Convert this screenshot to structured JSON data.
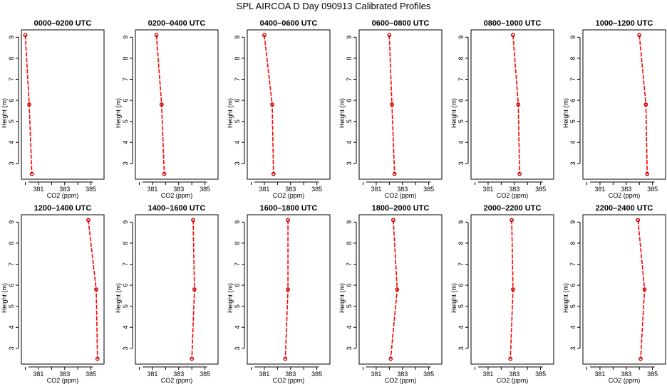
{
  "title": "SPL  AIRCOA D   Day 090913   Calibrated Profiles",
  "chart_data": {
    "type": "line",
    "title": "SPL  AIRCOA D   Day 090913   Calibrated Profiles",
    "xlabel": "CO2 (ppm)",
    "ylabel": "Height (m)",
    "xlim": [
      379.7,
      386.0
    ],
    "ylim": [
      2.25,
      9.35
    ],
    "xticks": [
      381,
      383,
      385
    ],
    "yticks": [
      3,
      4,
      5,
      6,
      7,
      8,
      9
    ],
    "line_color": "#ff0000",
    "point_color": "#cc0000",
    "panels": [
      {
        "title": "0000–0200 UTC",
        "x": [
          380.0,
          380.3,
          380.5
        ],
        "y": [
          9.1,
          5.8,
          2.5
        ]
      },
      {
        "title": "0200–0400 UTC",
        "x": [
          381.3,
          381.7,
          381.9
        ],
        "y": [
          9.1,
          5.8,
          2.5
        ]
      },
      {
        "title": "0400–0600 UTC",
        "x": [
          381.0,
          381.6,
          381.7
        ],
        "y": [
          9.1,
          5.8,
          2.5
        ]
      },
      {
        "title": "0600–0800 UTC",
        "x": [
          382.0,
          382.2,
          382.4
        ],
        "y": [
          9.1,
          5.8,
          2.5
        ]
      },
      {
        "title": "0800–1000 UTC",
        "x": [
          382.9,
          383.3,
          383.4
        ],
        "y": [
          9.1,
          5.8,
          2.5
        ]
      },
      {
        "title": "1000–1200 UTC",
        "x": [
          384.0,
          384.5,
          384.6
        ],
        "y": [
          9.1,
          5.8,
          2.5
        ]
      },
      {
        "title": "1200–1400 UTC",
        "x": [
          384.8,
          385.4,
          385.5
        ],
        "y": [
          9.1,
          5.8,
          2.5
        ]
      },
      {
        "title": "1400–1600 UTC",
        "x": [
          384.1,
          384.2,
          384.0
        ],
        "y": [
          9.1,
          5.8,
          2.5
        ]
      },
      {
        "title": "1600–1800 UTC",
        "x": [
          382.8,
          382.8,
          382.6
        ],
        "y": [
          9.1,
          5.8,
          2.5
        ]
      },
      {
        "title": "1800–2000 UTC",
        "x": [
          382.3,
          382.6,
          382.1
        ],
        "y": [
          9.1,
          5.8,
          2.5
        ]
      },
      {
        "title": "2000–2200 UTC",
        "x": [
          382.8,
          382.9,
          382.7
        ],
        "y": [
          9.1,
          5.8,
          2.5
        ]
      },
      {
        "title": "2200–2400 UTC",
        "x": [
          383.9,
          384.4,
          384.1
        ],
        "y": [
          9.1,
          5.8,
          2.5
        ]
      }
    ]
  }
}
